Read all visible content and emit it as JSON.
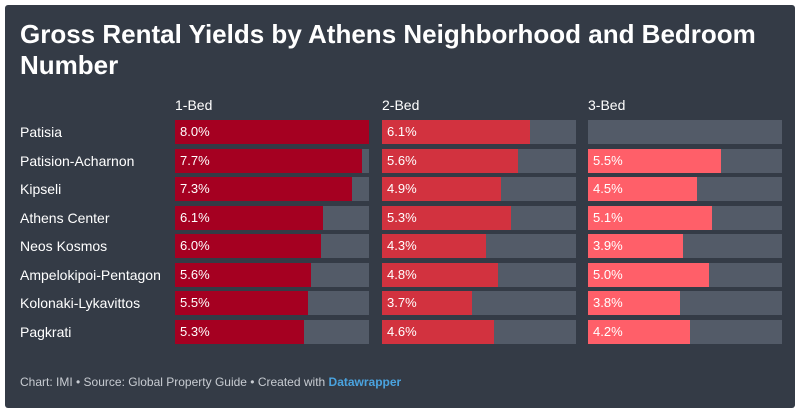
{
  "chart_data": {
    "type": "bar",
    "title": "Gross Rental Yields by Athens Neighborhood and Bedroom Number",
    "categories": [
      "Patisia",
      "Patision-Acharnon",
      "Kipseli",
      "Athens Center",
      "Neos Kosmos",
      "Ampelokipoi-Pentagon",
      "Kolonaki-Lykavittos",
      "Pagkrati"
    ],
    "series": [
      {
        "name": "1-Bed",
        "color": "#a50021",
        "values": [
          8.0,
          7.7,
          7.3,
          6.1,
          6.0,
          5.6,
          5.5,
          5.3
        ],
        "labels": [
          "8.0%",
          "7.7%",
          "7.3%",
          "6.1%",
          "6.0%",
          "5.6%",
          "5.5%",
          "5.3%"
        ]
      },
      {
        "name": "2-Bed",
        "color": "#d2323f",
        "values": [
          6.1,
          5.6,
          4.9,
          5.3,
          4.3,
          4.8,
          3.7,
          4.6
        ],
        "labels": [
          "6.1%",
          "5.6%",
          "4.9%",
          "5.3%",
          "4.3%",
          "4.8%",
          "3.7%",
          "4.6%"
        ]
      },
      {
        "name": "3-Bed",
        "color": "#ff5f69",
        "values": [
          null,
          5.5,
          4.5,
          5.1,
          3.9,
          5.0,
          3.8,
          4.2
        ],
        "labels": [
          "",
          "5.5%",
          "4.5%",
          "5.1%",
          "3.9%",
          "5.0%",
          "3.8%",
          "4.2%"
        ]
      }
    ],
    "xlim": [
      0,
      8.0
    ]
  },
  "footer": {
    "prefix": "Chart: IMI • Source: Global Property Guide • Created with ",
    "link": "Datawrapper"
  },
  "colors": {
    "background": "#343b46",
    "track": "#535b68",
    "text": "#ffffff"
  }
}
